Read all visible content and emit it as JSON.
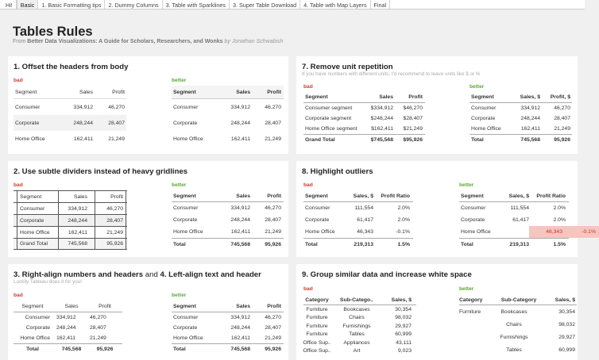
{
  "tabs": [
    "Hi!",
    "Basic",
    "1. Basic Formatting tips",
    "2. Dummy Columns",
    "3. Table with Sparklines",
    "3. Super Table Download",
    "4. Table with Map Layers",
    "Final"
  ],
  "header": {
    "title": "Tables Rules",
    "subtitle_prefix": "From ",
    "book": "Better Data Visualizations: A Guide for Scholars, Researchers, and Wonks",
    "author": "by Jonathan Schwabish"
  },
  "labels": {
    "bad": "bad",
    "better": "better"
  },
  "colors": {
    "bad": "#d03a2b",
    "better": "#5aa832",
    "outlier": "#f7c5c0"
  },
  "panels": {
    "p1": {
      "title": "1. Offset the headers from body",
      "bad": {
        "headers": [
          "Segment",
          "Sales",
          "Profit"
        ],
        "rows": [
          [
            "Consumer",
            "334,912",
            "46,270"
          ],
          [
            "Corporate",
            "248,244",
            "28,407"
          ],
          [
            "Home Office",
            "162,411",
            "21,249"
          ]
        ]
      },
      "better": {
        "headers": [
          "Segment",
          "Sales",
          "Profit"
        ],
        "rows": [
          [
            "Consumer",
            "334,912",
            "46,270"
          ],
          [
            "Corporate",
            "248,244",
            "28,407"
          ],
          [
            "Home Office",
            "162,411",
            "21,249"
          ]
        ]
      }
    },
    "p2": {
      "title": "2. Use subtle dividers instead of heavy gridlines",
      "bad": {
        "headers": [
          "Segment",
          "Sales",
          "Profit"
        ],
        "rows": [
          [
            "Consumer",
            "334,912",
            "46,270"
          ],
          [
            "Corporate",
            "248,244",
            "28,407"
          ],
          [
            "Home Office",
            "162,411",
            "21,249"
          ],
          [
            "Grand Total",
            "745,568",
            "95,926"
          ]
        ]
      },
      "better": {
        "headers": [
          "Segment",
          "Sales",
          "Profit"
        ],
        "rows": [
          [
            "Consumer",
            "334,912",
            "46,270"
          ],
          [
            "Corporate",
            "248,244",
            "28,407"
          ],
          [
            "Home Office",
            "162,411",
            "21,249"
          ],
          [
            "Total",
            "745,568",
            "95,926"
          ]
        ]
      }
    },
    "p3": {
      "title_a": "3. Right-align numbers and headers",
      "title_and": " and ",
      "title_b": "4. Left-align text and header",
      "note": "Luckily Tableau does it for you!",
      "bad": {
        "headers": [
          "Segment",
          "Sales",
          "Profit"
        ],
        "rows": [
          [
            "Consumer",
            "334,912",
            "46,270"
          ],
          [
            "Corporate",
            "248,244",
            "28,407"
          ],
          [
            "Home Office",
            "162,411",
            "21,249"
          ],
          [
            "Total",
            "745,568",
            "95,926"
          ]
        ]
      },
      "better": {
        "headers": [
          "Segment",
          "Sales",
          "Profit"
        ],
        "rows": [
          [
            "Consumer",
            "334,912",
            "46,270"
          ],
          [
            "Corporate",
            "248,244",
            "28,407"
          ],
          [
            "Home Office",
            "162,411",
            "21,249"
          ],
          [
            "Total",
            "745,568",
            "95,926"
          ]
        ]
      }
    },
    "p7": {
      "title": "7. Remove unit repetition",
      "note": "If you have numbers with different units, I'd recommend to leave units like $ or %",
      "bad": {
        "headers": [
          "Segment",
          "Sales",
          "Profit"
        ],
        "rows": [
          [
            "Consumer segment",
            "$334,912",
            "$46,270"
          ],
          [
            "Corporate segment",
            "$248,244",
            "$28,407"
          ],
          [
            "Home Office segment",
            "$162,411",
            "$21,249"
          ],
          [
            "Grand Total",
            "$745,568",
            "$95,926"
          ]
        ]
      },
      "better": {
        "headers": [
          "Segment",
          "Sales, $",
          "Profit, $"
        ],
        "rows": [
          [
            "Consumer",
            "334,912",
            "46,270"
          ],
          [
            "Corporate",
            "248,244",
            "28,407"
          ],
          [
            "Home Office",
            "162,411",
            "21,249"
          ],
          [
            "Total",
            "745,568",
            "95,926"
          ]
        ]
      }
    },
    "p8": {
      "title": "8. Highlight outliers",
      "bad": {
        "headers": [
          "Segment",
          "Sales, $",
          "Profit Ratio"
        ],
        "rows": [
          [
            "Consumer",
            "111,554",
            "2.0%"
          ],
          [
            "Corporate",
            "61,417",
            "2.0%"
          ],
          [
            "Home Office",
            "46,343",
            "-0.1%"
          ],
          [
            "Total",
            "219,313",
            "1.5%"
          ]
        ]
      },
      "better": {
        "headers": [
          "Segment",
          "Sales, $",
          "Profit Ratio"
        ],
        "rows": [
          [
            "Consumer",
            "111,554",
            "2.0%"
          ],
          [
            "Corporate",
            "61,417",
            "2.0%"
          ],
          [
            "Home Office",
            "46,343",
            "-0.1%"
          ],
          [
            "Total",
            "219,313",
            "1.5%"
          ]
        ]
      }
    },
    "p9": {
      "title": "9. Group similar data and increase white space",
      "bad": {
        "headers": [
          "Category",
          "Sub-Catego..",
          "Sales, $"
        ],
        "rows": [
          [
            "Furniture",
            "Bookcases",
            "30,354"
          ],
          [
            "Furniture",
            "Chairs",
            "98,032"
          ],
          [
            "Furniture",
            "Furnishings",
            "29,927"
          ],
          [
            "Furniture",
            "Tables",
            "60,999"
          ],
          [
            "Office Sup..",
            "Appliances",
            "43,111"
          ],
          [
            "Office Sup..",
            "Art",
            "9,023"
          ]
        ]
      },
      "better": {
        "headers": [
          "Category",
          "Sub-Category",
          "Sales, $"
        ],
        "group": "Furniture",
        "rows": [
          [
            "Bookcases",
            "30,354"
          ],
          [
            "Chairs",
            "98,032"
          ],
          [
            "Furnishings",
            "29,927"
          ],
          [
            "Tables",
            "60,999"
          ]
        ]
      }
    }
  }
}
